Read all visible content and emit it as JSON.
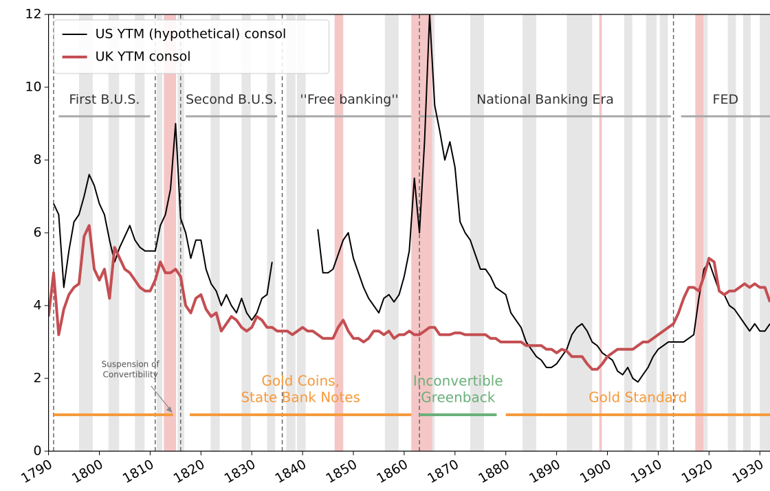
{
  "chart_data": {
    "type": "line",
    "x": [
      1790,
      1791,
      1792,
      1793,
      1794,
      1795,
      1796,
      1797,
      1798,
      1799,
      1800,
      1801,
      1802,
      1803,
      1804,
      1805,
      1806,
      1807,
      1808,
      1809,
      1810,
      1811,
      1812,
      1813,
      1814,
      1815,
      1816,
      1817,
      1818,
      1819,
      1820,
      1821,
      1822,
      1823,
      1824,
      1825,
      1826,
      1827,
      1828,
      1829,
      1830,
      1831,
      1832,
      1833,
      1834,
      1835,
      1836,
      1837,
      1838,
      1839,
      1840,
      1841,
      1842,
      1843,
      1844,
      1845,
      1846,
      1847,
      1848,
      1849,
      1850,
      1851,
      1852,
      1853,
      1854,
      1855,
      1856,
      1857,
      1858,
      1859,
      1860,
      1861,
      1862,
      1863,
      1864,
      1865,
      1866,
      1867,
      1868,
      1869,
      1870,
      1871,
      1872,
      1873,
      1874,
      1875,
      1876,
      1877,
      1878,
      1879,
      1880,
      1881,
      1882,
      1883,
      1884,
      1885,
      1886,
      1887,
      1888,
      1889,
      1890,
      1891,
      1892,
      1893,
      1894,
      1895,
      1896,
      1897,
      1898,
      1899,
      1900,
      1901,
      1902,
      1903,
      1904,
      1905,
      1906,
      1907,
      1908,
      1909,
      1910,
      1911,
      1912,
      1913,
      1914,
      1915,
      1916,
      1917,
      1918,
      1919,
      1920,
      1921,
      1922,
      1923,
      1924,
      1925,
      1926,
      1927,
      1928,
      1929,
      1930,
      1931,
      1932
    ],
    "series": [
      {
        "name": "US YTM (hypothetical) consol",
        "color": "#000000",
        "width": 2,
        "values": [
          null,
          6.8,
          6.5,
          4.5,
          5.5,
          6.3,
          6.5,
          7.0,
          7.6,
          7.3,
          6.8,
          6.5,
          5.8,
          5.2,
          5.6,
          5.9,
          6.2,
          5.8,
          5.6,
          5.5,
          5.5,
          5.5,
          6.2,
          6.5,
          7.2,
          9.0,
          6.4,
          6.0,
          5.3,
          5.8,
          5.8,
          5.0,
          4.6,
          4.4,
          4.0,
          4.3,
          4.0,
          3.8,
          4.2,
          3.8,
          3.6,
          3.8,
          4.2,
          4.3,
          5.2,
          null,
          null,
          null,
          null,
          null,
          null,
          null,
          null,
          6.1,
          4.9,
          4.9,
          5.0,
          5.4,
          5.8,
          6.0,
          5.3,
          4.9,
          4.5,
          4.2,
          4.0,
          3.8,
          4.2,
          4.3,
          4.1,
          4.3,
          4.8,
          5.5,
          7.5,
          6.0,
          8.5,
          12.0,
          9.5,
          8.8,
          8.0,
          8.5,
          7.8,
          6.3,
          6.0,
          5.8,
          5.4,
          5.0,
          5.0,
          4.8,
          4.5,
          4.4,
          4.3,
          3.8,
          3.6,
          3.4,
          3.0,
          2.8,
          2.6,
          2.5,
          2.3,
          2.3,
          2.4,
          2.6,
          2.8,
          3.2,
          3.4,
          3.5,
          3.3,
          3.0,
          2.9,
          2.7,
          2.6,
          2.5,
          2.2,
          2.1,
          2.3,
          2.0,
          1.9,
          2.1,
          2.3,
          2.6,
          2.8,
          2.9,
          3.0,
          3.0,
          3.0,
          3.0,
          3.1,
          3.2,
          4.2,
          5.0,
          5.2,
          4.8,
          4.4,
          4.3,
          4.0,
          3.9,
          3.7,
          3.5,
          3.3,
          3.5,
          3.3,
          3.3,
          3.5
        ]
      },
      {
        "name": "UK YTM consol",
        "color": "#c44e52",
        "width": 4,
        "values": [
          3.7,
          4.9,
          3.2,
          3.9,
          4.3,
          4.5,
          4.6,
          5.9,
          6.2,
          5.0,
          4.7,
          5.0,
          4.2,
          5.6,
          5.3,
          5.0,
          4.9,
          4.7,
          4.5,
          4.4,
          4.4,
          4.7,
          5.2,
          4.9,
          4.9,
          5.0,
          4.8,
          4.0,
          3.8,
          4.2,
          4.3,
          3.9,
          3.7,
          3.8,
          3.3,
          3.5,
          3.7,
          3.6,
          3.4,
          3.3,
          3.4,
          3.7,
          3.6,
          3.4,
          3.4,
          3.3,
          3.3,
          3.3,
          3.2,
          3.3,
          3.4,
          3.3,
          3.3,
          3.2,
          3.1,
          3.1,
          3.1,
          3.4,
          3.6,
          3.3,
          3.1,
          3.1,
          3.0,
          3.1,
          3.3,
          3.3,
          3.2,
          3.3,
          3.1,
          3.2,
          3.2,
          3.3,
          3.2,
          3.2,
          3.3,
          3.4,
          3.4,
          3.2,
          3.2,
          3.2,
          3.25,
          3.25,
          3.2,
          3.2,
          3.2,
          3.2,
          3.2,
          3.1,
          3.1,
          3.0,
          3.0,
          3.0,
          3.0,
          3.0,
          2.9,
          2.9,
          2.9,
          2.9,
          2.8,
          2.8,
          2.7,
          2.8,
          2.75,
          2.6,
          2.6,
          2.6,
          2.4,
          2.25,
          2.25,
          2.4,
          2.6,
          2.7,
          2.8,
          2.8,
          2.8,
          2.8,
          2.9,
          3.0,
          3.0,
          3.1,
          3.2,
          3.3,
          3.4,
          3.5,
          3.8,
          4.2,
          4.5,
          4.5,
          4.4,
          4.8,
          5.3,
          5.2,
          4.4,
          4.3,
          4.4,
          4.4,
          4.5,
          4.6,
          4.5,
          4.6,
          4.5,
          4.5,
          4.1
        ]
      }
    ],
    "xlim": [
      1790,
      1932
    ],
    "ylim": [
      0,
      12
    ],
    "xticks": [
      1790,
      1800,
      1810,
      1820,
      1830,
      1840,
      1850,
      1860,
      1870,
      1880,
      1890,
      1900,
      1910,
      1920,
      1930
    ],
    "yticks": [
      0,
      2,
      4,
      6,
      8,
      10,
      12
    ],
    "legend": "upper left",
    "recessions": {
      "color": "#e6e6e6",
      "spans": [
        [
          1796,
          1798.7
        ],
        [
          1801.8,
          1803.9
        ],
        [
          1807,
          1808.9
        ],
        [
          1811.3,
          1812.4
        ],
        [
          1815.4,
          1816.7
        ],
        [
          1821.9,
          1823.7
        ],
        [
          1828,
          1829.8
        ],
        [
          1833,
          1834.6
        ],
        [
          1836.8,
          1838.6
        ],
        [
          1838.9,
          1840.6
        ],
        [
          1856.2,
          1858.9
        ],
        [
          1865.5,
          1866
        ],
        [
          1873,
          1875.7
        ],
        [
          1883.3,
          1886
        ],
        [
          1892,
          1897
        ],
        [
          1903.3,
          1904.9
        ],
        [
          1907.6,
          1909.7
        ],
        [
          1910.3,
          1911.9
        ],
        [
          1918,
          1919.7
        ],
        [
          1923.7,
          1925.3
        ],
        [
          1926.7,
          1928.2
        ],
        [
          1930,
          1932
        ]
      ]
    },
    "wars": {
      "color": "#f5c6c6",
      "spans": [
        [
          1812.7,
          1815.1
        ],
        [
          1846.3,
          1848
        ],
        [
          1861.4,
          1865.5
        ],
        [
          1898.4,
          1898.9
        ],
        [
          1917.3,
          1918.9
        ]
      ]
    },
    "regime_breaks": [
      1791,
      1811,
      1816,
      1836,
      1863,
      1913
    ],
    "eras": {
      "y": 9.2,
      "color": "#aaaaaa",
      "items": [
        {
          "label": "First B.U.S.",
          "span": [
            1792,
            1810
          ]
        },
        {
          "label": "Second B.U.S.",
          "span": [
            1817,
            1835
          ]
        },
        {
          "label": "''Free banking''",
          "span": [
            1837,
            1861.4
          ]
        },
        {
          "label": "National Banking Era",
          "span": [
            1863,
            1912.5
          ]
        },
        {
          "label": "FED",
          "span": [
            1914.5,
            1932
          ]
        }
      ]
    },
    "regimes": {
      "y": 1,
      "items": [
        {
          "lines": [],
          "color": "#f59a3c",
          "span": [
            1791,
            1814.5
          ]
        },
        {
          "lines": [
            "Gold Coins,",
            "State Bank Notes"
          ],
          "color": "#f59a3c",
          "span": [
            1817.8,
            1861.4
          ]
        },
        {
          "lines": [
            "Inconvertible",
            "Greenback"
          ],
          "color": "#6ab07a",
          "span": [
            1863,
            1878.2
          ]
        },
        {
          "lines": [
            "Gold Standard"
          ],
          "color": "#f59a3c",
          "span": [
            1880,
            1932
          ]
        }
      ]
    },
    "annotation": {
      "lines": [
        "Suspension of",
        "Convertibility"
      ],
      "x": 1814.5,
      "y": 1
    }
  }
}
